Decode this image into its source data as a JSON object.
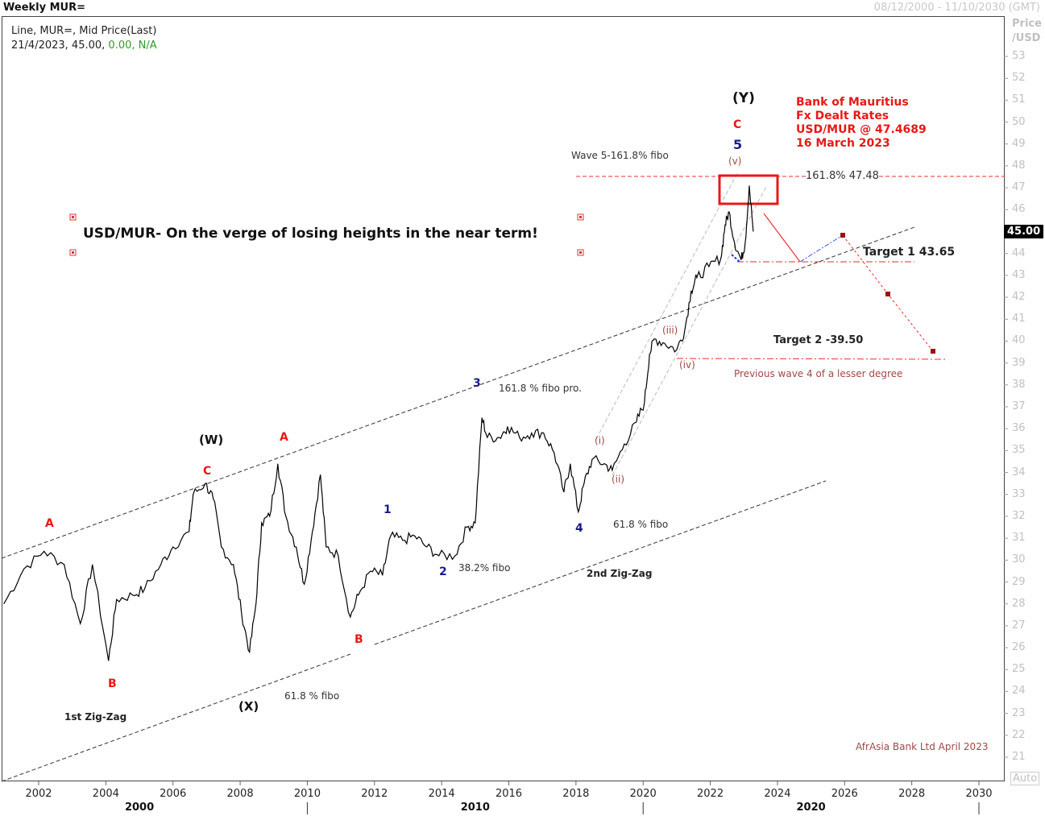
{
  "header": {
    "title": "Weekly MUR=",
    "date_range": "08/12/2000 - 11/10/2030 (GMT)"
  },
  "legend": {
    "line1": "Line, MUR=, Mid Price(Last)",
    "date": "21/4/2023, 45.00,",
    "change": "0.00, N/A"
  },
  "axis": {
    "unit_line1": "Price",
    "unit_line2": "/USD",
    "auto_label": "Auto",
    "current_price": "45.00"
  },
  "chart_data": {
    "type": "line",
    "title": "Weekly MUR=",
    "ylabel": "Price /USD",
    "ylim": [
      21,
      53
    ],
    "xlim": [
      2000.94,
      2030.78
    ],
    "y_ticks": [
      21,
      22,
      23,
      24,
      25,
      26,
      27,
      28,
      29,
      30,
      31,
      32,
      33,
      34,
      35,
      36,
      37,
      38,
      39,
      40,
      41,
      42,
      43,
      44,
      45,
      46,
      47,
      48,
      49,
      50,
      51,
      52,
      53
    ],
    "x_ticks": [
      "2002",
      "2004",
      "2006",
      "2008",
      "2010",
      "2012",
      "2014",
      "2016",
      "2018",
      "2020",
      "2022",
      "2024",
      "2026",
      "2028",
      "2030"
    ],
    "decades": [
      "2000",
      "2010",
      "2020"
    ],
    "grid": false,
    "series": [
      {
        "color": "#000000",
        "points": [
          [
            2000.96,
            28.0
          ],
          [
            2001.56,
            29.6
          ],
          [
            2002.16,
            30.4
          ],
          [
            2002.76,
            29.8
          ],
          [
            2003.24,
            27.1
          ],
          [
            2003.6,
            29.8
          ],
          [
            2004.08,
            25.4
          ],
          [
            2004.32,
            28.2
          ],
          [
            2004.8,
            28.4
          ],
          [
            2005.16,
            28.7
          ],
          [
            2005.64,
            29.8
          ],
          [
            2006.0,
            30.6
          ],
          [
            2006.48,
            31.3
          ],
          [
            2006.6,
            33.0
          ],
          [
            2006.96,
            33.5
          ],
          [
            2007.2,
            32.8
          ],
          [
            2007.44,
            30.6
          ],
          [
            2007.8,
            29.8
          ],
          [
            2008.04,
            27.6
          ],
          [
            2008.28,
            25.8
          ],
          [
            2008.47,
            28.0
          ],
          [
            2008.64,
            31.7
          ],
          [
            2008.88,
            32.0
          ],
          [
            2009.12,
            34.4
          ],
          [
            2009.36,
            32.0
          ],
          [
            2009.67,
            30.6
          ],
          [
            2009.91,
            28.9
          ],
          [
            2010.15,
            31.3
          ],
          [
            2010.39,
            33.9
          ],
          [
            2010.56,
            30.6
          ],
          [
            2010.92,
            30.2
          ],
          [
            2011.28,
            27.4
          ],
          [
            2011.52,
            28.4
          ],
          [
            2011.88,
            29.5
          ],
          [
            2012.24,
            29.3
          ],
          [
            2012.48,
            31.1
          ],
          [
            2012.84,
            30.9
          ],
          [
            2013.2,
            31.1
          ],
          [
            2013.56,
            30.6
          ],
          [
            2013.92,
            30.2
          ],
          [
            2014.4,
            30.2
          ],
          [
            2014.76,
            31.5
          ],
          [
            2015.0,
            31.7
          ],
          [
            2015.2,
            36.5
          ],
          [
            2015.36,
            35.6
          ],
          [
            2015.72,
            35.6
          ],
          [
            2015.96,
            36.1
          ],
          [
            2016.32,
            35.6
          ],
          [
            2016.68,
            35.8
          ],
          [
            2017.04,
            35.8
          ],
          [
            2017.35,
            34.9
          ],
          [
            2017.64,
            33.1
          ],
          [
            2017.83,
            34.4
          ],
          [
            2018.07,
            32.2
          ],
          [
            2018.24,
            33.5
          ],
          [
            2018.48,
            34.6
          ],
          [
            2018.84,
            34.4
          ],
          [
            2019.08,
            34.1
          ],
          [
            2019.44,
            35.3
          ],
          [
            2019.8,
            36.3
          ],
          [
            2020.04,
            37.2
          ],
          [
            2020.19,
            39.4
          ],
          [
            2020.33,
            40.1
          ],
          [
            2020.64,
            39.9
          ],
          [
            2021.0,
            39.6
          ],
          [
            2021.24,
            40.5
          ],
          [
            2021.43,
            42.3
          ],
          [
            2021.6,
            42.9
          ],
          [
            2021.96,
            43.4
          ],
          [
            2022.32,
            43.8
          ],
          [
            2022.44,
            45.3
          ],
          [
            2022.56,
            45.9
          ],
          [
            2022.72,
            44.5
          ],
          [
            2022.92,
            43.7
          ],
          [
            2023.04,
            44.5
          ],
          [
            2023.16,
            47.1
          ],
          [
            2023.28,
            45.0
          ]
        ]
      }
    ],
    "annotations": {
      "headline": "USD/MUR- On the verge of losing heights in the near term!",
      "bank_note": [
        "Bank of Mauritius",
        "Fx Dealt Rates",
        "USD/MUR @ 47.4689",
        "16 March 2023"
      ],
      "fibo_level": "161.8% 47.48",
      "fibo_value": 47.48,
      "target1": "Target 1 43.65",
      "target1_value": 43.65,
      "target2": "Target 2 -39.50",
      "target2_value": 39.5,
      "wave5_fibo": "Wave 5-161.8% fibo",
      "fibo_pro": "161.8 % fibo pro.",
      "fibo_382": "38.2% fibo",
      "fibo_618a": "61.8 % fibo",
      "fibo_618b": "61.8 % fibo",
      "prev_wave4": "Previous wave 4 of a lesser degree",
      "zigzag1": "1st Zig-Zag",
      "zigzag2": "2nd Zig-Zag",
      "credit": "AfrAsia Bank Ltd April 2023",
      "waves": {
        "A1": "A",
        "B1": "B",
        "C1": "C",
        "W": "(W)",
        "X": "(X)",
        "A2": "A",
        "B2": "B",
        "Y": "(Y)",
        "C2": "C",
        "w1": "1",
        "w2": "2",
        "w3": "3",
        "w4": "4",
        "w5": "5",
        "i": "(i)",
        "ii": "(ii)",
        "iii": "(iii)",
        "iv": "(iv)",
        "v": "(v)"
      }
    }
  }
}
